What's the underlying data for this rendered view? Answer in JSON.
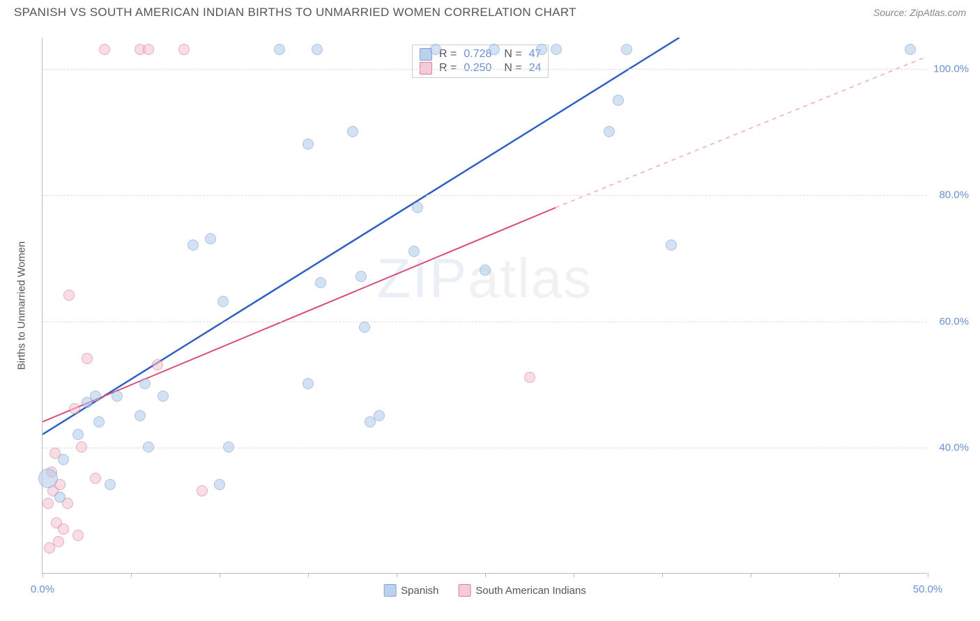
{
  "title": "SPANISH VS SOUTH AMERICAN INDIAN BIRTHS TO UNMARRIED WOMEN CORRELATION CHART",
  "source": "Source: ZipAtlas.com",
  "y_axis_title": "Births to Unmarried Women",
  "watermark": {
    "bold": "ZIP",
    "light": "atlas"
  },
  "chart": {
    "type": "scatter",
    "xlim": [
      0,
      50
    ],
    "ylim": [
      20,
      105
    ],
    "y_ticks": [
      40,
      60,
      80,
      100
    ],
    "y_tick_labels": [
      "40.0%",
      "60.0%",
      "80.0%",
      "100.0%"
    ],
    "x_tick_positions": [
      0,
      5,
      10,
      15,
      20,
      25,
      30,
      35,
      40,
      45,
      50
    ],
    "x_axis_labels": [
      {
        "at": 0,
        "text": "0.0%"
      },
      {
        "at": 50,
        "text": "50.0%"
      }
    ],
    "background_color": "#ffffff",
    "grid_color": "#dddddd",
    "axis_color": "#bbbbbb",
    "marker_radius": 8,
    "marker_radius_large": 14,
    "series": [
      {
        "id": "spanish",
        "label": "Spanish",
        "fill": "#aecbeb",
        "stroke": "#6b8fd4",
        "fill_opacity": 0.55,
        "r_stat": "0.728",
        "n_stat": "47",
        "trend": {
          "solid": {
            "x1": 0,
            "y1": 42,
            "x2": 36,
            "y2": 105,
            "color": "#2f5fc0",
            "width": 2.5
          }
        },
        "points": [
          {
            "x": 0.3,
            "y": 35,
            "r": 14
          },
          {
            "x": 1.0,
            "y": 32
          },
          {
            "x": 1.2,
            "y": 38
          },
          {
            "x": 2.0,
            "y": 42
          },
          {
            "x": 2.5,
            "y": 47
          },
          {
            "x": 3.0,
            "y": 48
          },
          {
            "x": 3.2,
            "y": 44
          },
          {
            "x": 3.8,
            "y": 34
          },
          {
            "x": 4.2,
            "y": 48
          },
          {
            "x": 5.5,
            "y": 45
          },
          {
            "x": 5.8,
            "y": 50
          },
          {
            "x": 6.0,
            "y": 40
          },
          {
            "x": 6.8,
            "y": 48
          },
          {
            "x": 8.5,
            "y": 72
          },
          {
            "x": 9.5,
            "y": 73
          },
          {
            "x": 10.0,
            "y": 34
          },
          {
            "x": 10.2,
            "y": 63
          },
          {
            "x": 10.5,
            "y": 40
          },
          {
            "x": 13.4,
            "y": 103
          },
          {
            "x": 15.0,
            "y": 88
          },
          {
            "x": 15.0,
            "y": 50
          },
          {
            "x": 15.5,
            "y": 103
          },
          {
            "x": 15.7,
            "y": 66
          },
          {
            "x": 17.5,
            "y": 90
          },
          {
            "x": 18.0,
            "y": 67
          },
          {
            "x": 18.2,
            "y": 59
          },
          {
            "x": 18.5,
            "y": 44
          },
          {
            "x": 19.0,
            "y": 45
          },
          {
            "x": 21.0,
            "y": 71
          },
          {
            "x": 21.2,
            "y": 78
          },
          {
            "x": 22.2,
            "y": 103
          },
          {
            "x": 25.0,
            "y": 68
          },
          {
            "x": 25.5,
            "y": 103
          },
          {
            "x": 28.2,
            "y": 103
          },
          {
            "x": 29.0,
            "y": 103
          },
          {
            "x": 32.0,
            "y": 90
          },
          {
            "x": 32.5,
            "y": 95
          },
          {
            "x": 33.0,
            "y": 103
          },
          {
            "x": 35.5,
            "y": 72
          },
          {
            "x": 49.0,
            "y": 103
          }
        ]
      },
      {
        "id": "south_american_indians",
        "label": "South American Indians",
        "fill": "#f3c2cf",
        "stroke": "#d46a8a",
        "fill_opacity": 0.55,
        "r_stat": "0.250",
        "n_stat": "24",
        "trend": {
          "solid": {
            "x1": 0,
            "y1": 44,
            "x2": 29,
            "y2": 78,
            "color": "#d94f78",
            "width": 2
          },
          "dashed": {
            "x1": 29,
            "y1": 78,
            "x2": 50,
            "y2": 102,
            "color": "#f0a8bc",
            "width": 1.5
          }
        },
        "points": [
          {
            "x": 0.3,
            "y": 31
          },
          {
            "x": 0.4,
            "y": 24
          },
          {
            "x": 0.5,
            "y": 36
          },
          {
            "x": 0.6,
            "y": 33
          },
          {
            "x": 0.7,
            "y": 39
          },
          {
            "x": 0.8,
            "y": 28
          },
          {
            "x": 0.9,
            "y": 25
          },
          {
            "x": 1.0,
            "y": 34
          },
          {
            "x": 1.2,
            "y": 27
          },
          {
            "x": 1.4,
            "y": 31
          },
          {
            "x": 1.5,
            "y": 64
          },
          {
            "x": 1.8,
            "y": 46
          },
          {
            "x": 2.0,
            "y": 26
          },
          {
            "x": 2.2,
            "y": 40
          },
          {
            "x": 2.5,
            "y": 54
          },
          {
            "x": 3.0,
            "y": 35
          },
          {
            "x": 3.5,
            "y": 103
          },
          {
            "x": 5.5,
            "y": 103
          },
          {
            "x": 6.0,
            "y": 103
          },
          {
            "x": 6.5,
            "y": 53
          },
          {
            "x": 8.0,
            "y": 103
          },
          {
            "x": 9.0,
            "y": 33
          },
          {
            "x": 27.5,
            "y": 51
          }
        ]
      }
    ]
  },
  "stats_legend": {
    "r_label": "R =",
    "n_label": "N ="
  },
  "bottom_legend": {
    "items": [
      "Spanish",
      "South American Indians"
    ]
  }
}
